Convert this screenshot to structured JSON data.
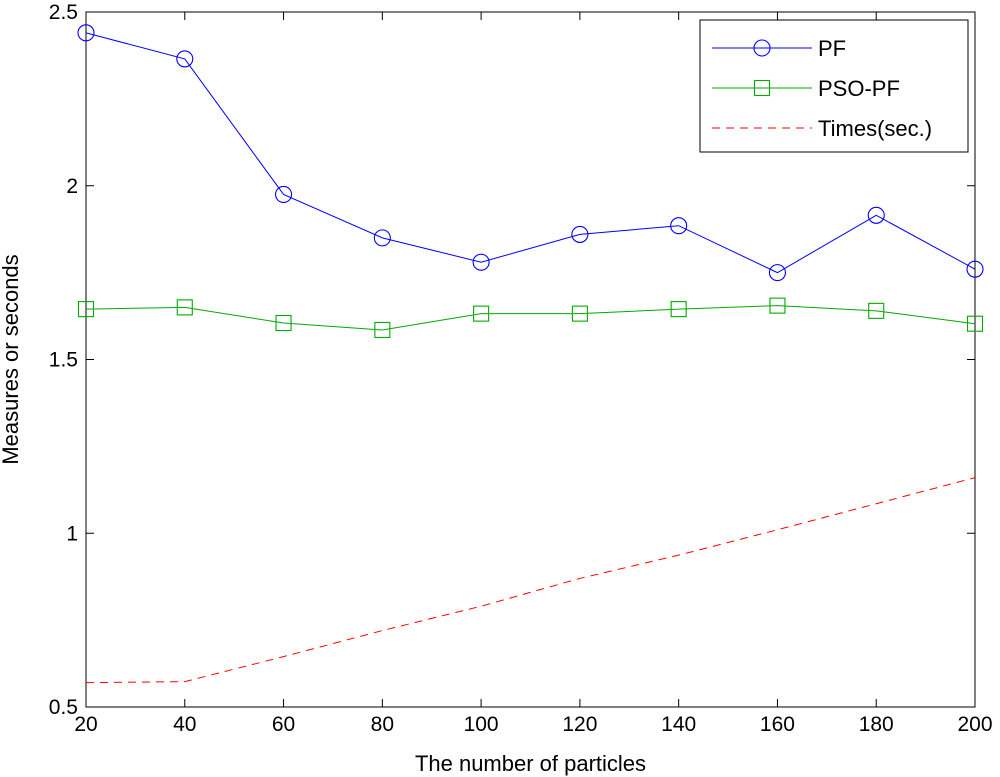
{
  "chart_data": {
    "type": "line",
    "title": "",
    "xlabel": "The number of particles",
    "ylabel": "Measures or seconds",
    "xlim": [
      20,
      200
    ],
    "ylim": [
      0.5,
      2.5
    ],
    "x_ticks": [
      20,
      40,
      60,
      80,
      100,
      120,
      140,
      160,
      180,
      200
    ],
    "x_tick_labels": [
      "20",
      "40",
      "60",
      "80",
      "100",
      "120",
      "140",
      "160",
      "180",
      "200"
    ],
    "y_ticks": [
      0.5,
      1,
      1.5,
      2,
      2.5
    ],
    "y_tick_labels": [
      "0.5",
      "1",
      "1.5",
      "2",
      "2.5"
    ],
    "grid": false,
    "legend_position": "top-right",
    "x": [
      20,
      40,
      60,
      80,
      100,
      120,
      140,
      160,
      180,
      200
    ],
    "series": [
      {
        "name": "PF",
        "marker": "circle",
        "line_style": "solid",
        "color": "#0000ff",
        "values": [
          2.44,
          2.365,
          1.975,
          1.85,
          1.78,
          1.86,
          1.885,
          1.75,
          1.915,
          1.76
        ]
      },
      {
        "name": "PSO-PF",
        "marker": "square",
        "line_style": "solid",
        "color": "#00aa00",
        "values": [
          1.645,
          1.65,
          1.605,
          1.585,
          1.632,
          1.632,
          1.645,
          1.655,
          1.64,
          1.603
        ]
      },
      {
        "name": "Times(sec.)",
        "marker": "none",
        "line_style": "dashed",
        "color": "#ff0000",
        "values": [
          0.57,
          0.573,
          0.645,
          0.72,
          0.79,
          0.87,
          0.937,
          1.01,
          1.085,
          1.16
        ]
      }
    ]
  }
}
